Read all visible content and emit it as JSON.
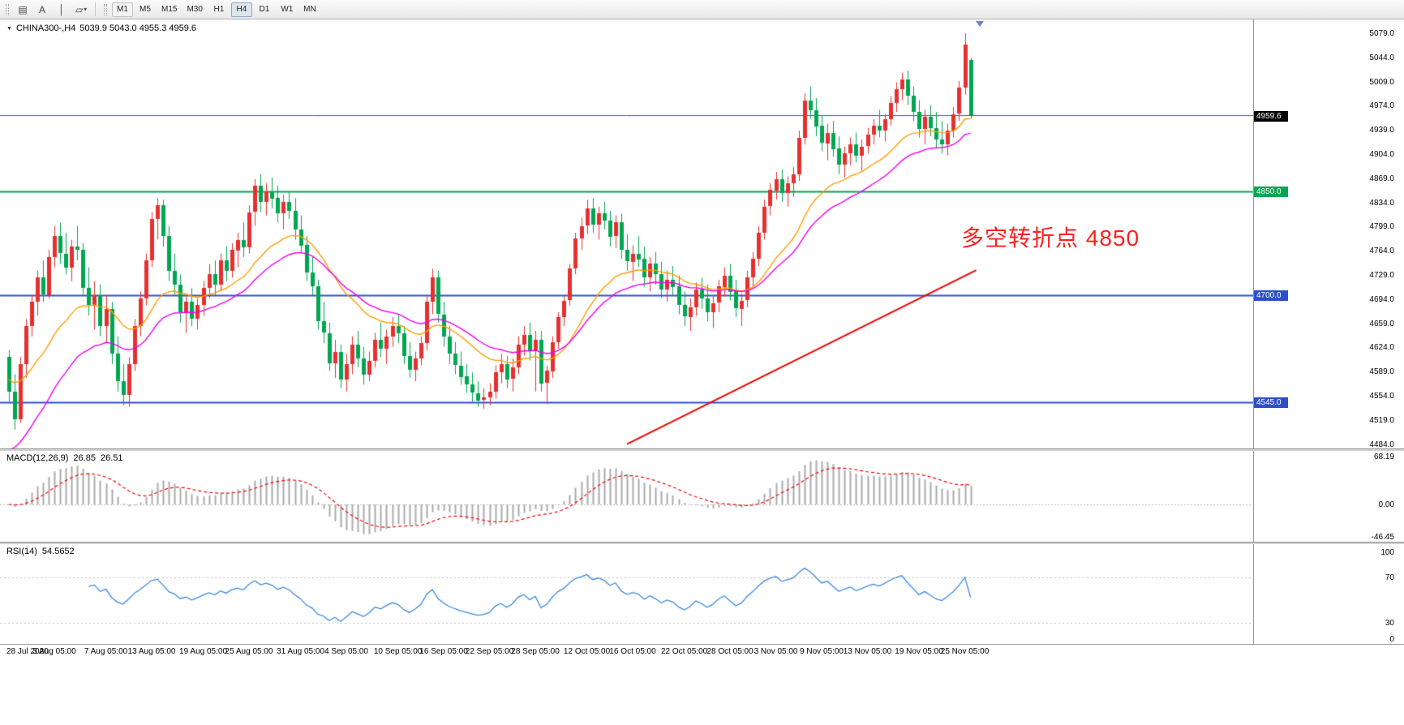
{
  "app": {
    "title_symbol": "CHINA300-,H4",
    "ohlc": "5039.9 5043.0 4955.3 4959.6"
  },
  "toolbar": {
    "tools": [
      {
        "name": "chart-grid-icon",
        "glyph": "▤"
      },
      {
        "name": "text-label-icon",
        "glyph": "A"
      },
      {
        "name": "vertical-line-icon",
        "glyph": "│"
      },
      {
        "name": "shapes-dropdown-icon",
        "glyph": "▱",
        "caret": "▾"
      }
    ],
    "timeframes": [
      "M1",
      "M5",
      "M15",
      "M30",
      "H1",
      "H4",
      "D1",
      "W1",
      "MN"
    ],
    "active_timeframe": "H4"
  },
  "chart_data": {
    "type": "candlestick",
    "symbol": "CHINA300-",
    "period": "H4",
    "last_ohlc": {
      "open": 5039.9,
      "high": 5043.0,
      "low": 4955.3,
      "close": 4959.6
    },
    "candle_colors": {
      "up": "#e63030",
      "down": "#00a651"
    },
    "price_axis": {
      "max": 5079,
      "min": 4484,
      "ticks": [
        "5079.0",
        "5044.0",
        "5009.0",
        "4974.0",
        "4939.0",
        "4904.0",
        "4869.0",
        "4834.0",
        "4799.0",
        "4764.0",
        "4729.0",
        "4694.0",
        "4659.0",
        "4624.0",
        "4589.0",
        "4554.0",
        "4519.0",
        "4484.0"
      ]
    },
    "date_ticks": [
      {
        "label": "28 Jul 2020",
        "i": 0
      },
      {
        "label": "3 Aug 05:00",
        "i": 8
      },
      {
        "label": "7 Aug 05:00",
        "i": 17
      },
      {
        "label": "13 Aug 05:00",
        "i": 25
      },
      {
        "label": "19 Aug 05:00",
        "i": 34
      },
      {
        "label": "25 Aug 05:00",
        "i": 42
      },
      {
        "label": "31 Aug 05:00",
        "i": 51
      },
      {
        "label": "4 Sep 05:00",
        "i": 59
      },
      {
        "label": "10 Sep 05:00",
        "i": 68
      },
      {
        "label": "16 Sep 05:00",
        "i": 76
      },
      {
        "label": "22 Sep 05:00",
        "i": 84
      },
      {
        "label": "28 Sep 05:00",
        "i": 92
      },
      {
        "label": "12 Oct 05:00",
        "i": 101
      },
      {
        "label": "16 Oct 05:00",
        "i": 109
      },
      {
        "label": "22 Oct 05:00",
        "i": 118
      },
      {
        "label": "28 Oct 05:00",
        "i": 126
      },
      {
        "label": "3 Nov 05:00",
        "i": 134
      },
      {
        "label": "9 Nov 05:00",
        "i": 142
      },
      {
        "label": "13 Nov 05:00",
        "i": 150
      },
      {
        "label": "19 Nov 05:00",
        "i": 159
      },
      {
        "label": "25 Nov 05:00",
        "i": 167
      }
    ],
    "hlines": [
      {
        "price": 4960,
        "color": "#2d50c8",
        "width": 1
      },
      {
        "price": 4850,
        "color": "#00a651",
        "width": 2
      },
      {
        "price": 4700,
        "color": "#2d50c8",
        "width": 2
      },
      {
        "price": 4545,
        "color": "#2d50c8",
        "width": 2
      }
    ],
    "price_badges": [
      {
        "text": "4959.6",
        "price": 4959.6,
        "bg": "#000000"
      },
      {
        "text": "4850.0",
        "price": 4850,
        "bg": "#00a651"
      },
      {
        "text": "4700.0",
        "price": 4700,
        "bg": "#2d50c8"
      },
      {
        "text": "4545.0",
        "price": 4545,
        "bg": "#2d50c8"
      }
    ],
    "annotation": {
      "text": "多空转折点 4850",
      "color": "#ff1f1f"
    },
    "moving_averages": [
      {
        "name": "ma-fast",
        "color": "#ff9e00",
        "period": 20,
        "seed": 4580
      },
      {
        "name": "ma-slow",
        "color": "#f000f0",
        "period": 30,
        "seed": 4470
      }
    ],
    "trendline": {
      "color": "#f00000",
      "from_i": 108,
      "from_price": 4484,
      "to_i": 169,
      "to_price": 4736,
      "width": 2
    },
    "macd": {
      "label": "MACD(12,26,9)",
      "main_value": "26.85",
      "signal_value": "26.51",
      "fast": 12,
      "slow": 26,
      "signal": 9,
      "hist_color": "#ababab",
      "signal_color": "#ff0000",
      "ticks": [
        {
          "label": "68.19",
          "v": 68.19
        },
        {
          "label": "0.00",
          "v": 0
        },
        {
          "label": "-46.45",
          "v": -46.45
        }
      ]
    },
    "rsi": {
      "label": "RSI(14)",
      "value": "54.5652",
      "period": 14,
      "color": "#3b8ae0",
      "levels": [
        70,
        30
      ],
      "ticks": [
        {
          "label": "100",
          "v": 100
        },
        {
          "label": "70",
          "v": 70
        },
        {
          "label": "30",
          "v": 30
        },
        {
          "label": "0",
          "v": 0
        }
      ]
    },
    "candles": [
      [
        4610,
        4620,
        4545,
        4560
      ],
      [
        4560,
        4585,
        4505,
        4520
      ],
      [
        4520,
        4610,
        4515,
        4600
      ],
      [
        4600,
        4665,
        4580,
        4655
      ],
      [
        4655,
        4700,
        4640,
        4690
      ],
      [
        4690,
        4735,
        4670,
        4725
      ],
      [
        4725,
        4750,
        4690,
        4700
      ],
      [
        4700,
        4765,
        4695,
        4755
      ],
      [
        4755,
        4800,
        4740,
        4785
      ],
      [
        4785,
        4805,
        4745,
        4760
      ],
      [
        4760,
        4790,
        4730,
        4740
      ],
      [
        4740,
        4780,
        4720,
        4770
      ],
      [
        4770,
        4800,
        4750,
        4765
      ],
      [
        4765,
        4775,
        4700,
        4710
      ],
      [
        4710,
        4740,
        4670,
        4685
      ],
      [
        4685,
        4720,
        4650,
        4700
      ],
      [
        4700,
        4715,
        4640,
        4655
      ],
      [
        4655,
        4700,
        4630,
        4680
      ],
      [
        4680,
        4690,
        4600,
        4615
      ],
      [
        4615,
        4640,
        4560,
        4575
      ],
      [
        4575,
        4600,
        4540,
        4555
      ],
      [
        4555,
        4610,
        4538,
        4600
      ],
      [
        4600,
        4665,
        4590,
        4655
      ],
      [
        4655,
        4705,
        4640,
        4695
      ],
      [
        4695,
        4760,
        4685,
        4750
      ],
      [
        4750,
        4820,
        4740,
        4810
      ],
      [
        4810,
        4840,
        4780,
        4830
      ],
      [
        4830,
        4838,
        4770,
        4785
      ],
      [
        4785,
        4800,
        4720,
        4735
      ],
      [
        4735,
        4760,
        4700,
        4715
      ],
      [
        4715,
        4730,
        4660,
        4675
      ],
      [
        4675,
        4700,
        4645,
        4690
      ],
      [
        4690,
        4710,
        4655,
        4665
      ],
      [
        4665,
        4695,
        4650,
        4685
      ],
      [
        4685,
        4720,
        4670,
        4710
      ],
      [
        4710,
        4745,
        4695,
        4730
      ],
      [
        4730,
        4750,
        4700,
        4715
      ],
      [
        4715,
        4760,
        4705,
        4750
      ],
      [
        4750,
        4770,
        4720,
        4735
      ],
      [
        4735,
        4775,
        4725,
        4765
      ],
      [
        4765,
        4790,
        4740,
        4780
      ],
      [
        4780,
        4805,
        4755,
        4770
      ],
      [
        4770,
        4830,
        4760,
        4820
      ],
      [
        4820,
        4868,
        4800,
        4858
      ],
      [
        4858,
        4875,
        4820,
        4835
      ],
      [
        4835,
        4862,
        4815,
        4850
      ],
      [
        4850,
        4870,
        4825,
        4840
      ],
      [
        4840,
        4858,
        4805,
        4818
      ],
      [
        4818,
        4845,
        4795,
        4835
      ],
      [
        4835,
        4850,
        4810,
        4822
      ],
      [
        4822,
        4840,
        4780,
        4795
      ],
      [
        4795,
        4815,
        4760,
        4772
      ],
      [
        4772,
        4785,
        4720,
        4732
      ],
      [
        4732,
        4755,
        4700,
        4712
      ],
      [
        4712,
        4722,
        4650,
        4662
      ],
      [
        4662,
        4690,
        4630,
        4645
      ],
      [
        4645,
        4660,
        4590,
        4602
      ],
      [
        4602,
        4635,
        4580,
        4618
      ],
      [
        4618,
        4628,
        4565,
        4578
      ],
      [
        4578,
        4615,
        4560,
        4600
      ],
      [
        4600,
        4640,
        4585,
        4628
      ],
      [
        4628,
        4648,
        4595,
        4608
      ],
      [
        4608,
        4625,
        4570,
        4585
      ],
      [
        4585,
        4618,
        4575,
        4605
      ],
      [
        4605,
        4645,
        4595,
        4635
      ],
      [
        4635,
        4660,
        4610,
        4622
      ],
      [
        4622,
        4650,
        4600,
        4640
      ],
      [
        4640,
        4668,
        4625,
        4655
      ],
      [
        4655,
        4672,
        4630,
        4645
      ],
      [
        4645,
        4655,
        4600,
        4612
      ],
      [
        4612,
        4632,
        4580,
        4592
      ],
      [
        4592,
        4618,
        4575,
        4608
      ],
      [
        4608,
        4640,
        4598,
        4630
      ],
      [
        4630,
        4700,
        4620,
        4690
      ],
      [
        4690,
        4738,
        4672,
        4725
      ],
      [
        4725,
        4735,
        4660,
        4672
      ],
      [
        4672,
        4690,
        4625,
        4640
      ],
      [
        4640,
        4655,
        4600,
        4615
      ],
      [
        4615,
        4632,
        4585,
        4598
      ],
      [
        4598,
        4618,
        4570,
        4582
      ],
      [
        4582,
        4600,
        4558,
        4570
      ],
      [
        4570,
        4588,
        4545,
        4558
      ],
      [
        4558,
        4575,
        4538,
        4548
      ],
      [
        4548,
        4565,
        4535,
        4552
      ],
      [
        4552,
        4572,
        4540,
        4560
      ],
      [
        4560,
        4598,
        4550,
        4588
      ],
      [
        4588,
        4615,
        4572,
        4600
      ],
      [
        4600,
        4612,
        4565,
        4578
      ],
      [
        4578,
        4608,
        4560,
        4595
      ],
      [
        4595,
        4640,
        4585,
        4628
      ],
      [
        4628,
        4655,
        4612,
        4642
      ],
      [
        4642,
        4660,
        4605,
        4618
      ],
      [
        4618,
        4648,
        4560,
        4635
      ],
      [
        4635,
        4648,
        4560,
        4572
      ],
      [
        4572,
        4598,
        4542,
        4590
      ],
      [
        4590,
        4640,
        4580,
        4632
      ],
      [
        4632,
        4675,
        4622,
        4668
      ],
      [
        4668,
        4700,
        4655,
        4692
      ],
      [
        4692,
        4745,
        4685,
        4738
      ],
      [
        4738,
        4790,
        4730,
        4782
      ],
      [
        4782,
        4812,
        4765,
        4800
      ],
      [
        4800,
        4838,
        4788,
        4825
      ],
      [
        4825,
        4840,
        4790,
        4802
      ],
      [
        4802,
        4828,
        4780,
        4818
      ],
      [
        4818,
        4835,
        4795,
        4808
      ],
      [
        4808,
        4822,
        4770,
        4785
      ],
      [
        4785,
        4815,
        4768,
        4805
      ],
      [
        4805,
        4818,
        4752,
        4765
      ],
      [
        4765,
        4788,
        4735,
        4748
      ],
      [
        4748,
        4772,
        4720,
        4760
      ],
      [
        4760,
        4785,
        4740,
        4752
      ],
      [
        4752,
        4770,
        4712,
        4725
      ],
      [
        4725,
        4755,
        4705,
        4745
      ],
      [
        4745,
        4762,
        4715,
        4730
      ],
      [
        4730,
        4748,
        4695,
        4708
      ],
      [
        4708,
        4735,
        4690,
        4722
      ],
      [
        4722,
        4742,
        4700,
        4712
      ],
      [
        4712,
        4728,
        4672,
        4685
      ],
      [
        4685,
        4705,
        4655,
        4668
      ],
      [
        4668,
        4695,
        4648,
        4682
      ],
      [
        4682,
        4718,
        4670,
        4708
      ],
      [
        4708,
        4725,
        4680,
        4695
      ],
      [
        4695,
        4715,
        4662,
        4675
      ],
      [
        4675,
        4700,
        4652,
        4688
      ],
      [
        4688,
        4722,
        4675,
        4712
      ],
      [
        4712,
        4740,
        4698,
        4728
      ],
      [
        4728,
        4745,
        4692,
        4705
      ],
      [
        4705,
        4722,
        4668,
        4680
      ],
      [
        4680,
        4702,
        4655,
        4692
      ],
      [
        4692,
        4735,
        4682,
        4725
      ],
      [
        4725,
        4762,
        4712,
        4752
      ],
      [
        4752,
        4800,
        4742,
        4790
      ],
      [
        4790,
        4838,
        4780,
        4828
      ],
      [
        4828,
        4862,
        4815,
        4852
      ],
      [
        4852,
        4878,
        4838,
        4868
      ],
      [
        4868,
        4882,
        4835,
        4848
      ],
      [
        4848,
        4872,
        4828,
        4862
      ],
      [
        4862,
        4885,
        4842,
        4875
      ],
      [
        4875,
        4938,
        4865,
        4928
      ],
      [
        4928,
        4992,
        4918,
        4982
      ],
      [
        4982,
        5002,
        4955,
        4968
      ],
      [
        4968,
        4985,
        4930,
        4945
      ],
      [
        4945,
        4960,
        4908,
        4920
      ],
      [
        4920,
        4948,
        4895,
        4935
      ],
      [
        4935,
        4952,
        4900,
        4912
      ],
      [
        4912,
        4930,
        4875,
        4888
      ],
      [
        4888,
        4915,
        4870,
        4905
      ],
      [
        4905,
        4928,
        4888,
        4918
      ],
      [
        4918,
        4935,
        4892,
        4902
      ],
      [
        4902,
        4925,
        4880,
        4915
      ],
      [
        4915,
        4942,
        4905,
        4932
      ],
      [
        4932,
        4955,
        4918,
        4945
      ],
      [
        4945,
        4968,
        4928,
        4938
      ],
      [
        4938,
        4962,
        4922,
        4955
      ],
      [
        4955,
        4988,
        4945,
        4978
      ],
      [
        4978,
        5008,
        4965,
        4998
      ],
      [
        4998,
        5022,
        4982,
        5012
      ],
      [
        5012,
        5025,
        4975,
        4988
      ],
      [
        4988,
        5002,
        4952,
        4965
      ],
      [
        4965,
        4982,
        4928,
        4940
      ],
      [
        4940,
        4968,
        4918,
        4958
      ],
      [
        4958,
        4975,
        4930,
        4942
      ],
      [
        4942,
        4965,
        4912,
        4925
      ],
      [
        4925,
        4952,
        4905,
        4918
      ],
      [
        4918,
        4948,
        4902,
        4938
      ],
      [
        4938,
        4972,
        4928,
        4962
      ],
      [
        4962,
        5010,
        4952,
        5000
      ],
      [
        5000,
        5079,
        4990,
        5062
      ],
      [
        5039.9,
        5043.0,
        4955.3,
        4959.6
      ]
    ]
  }
}
